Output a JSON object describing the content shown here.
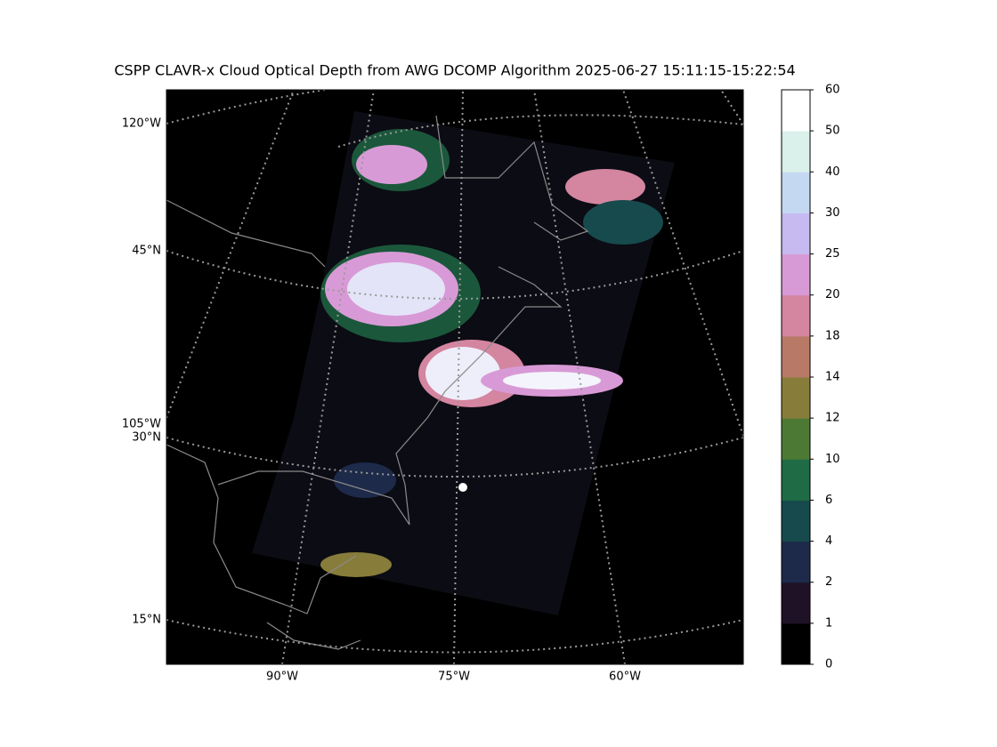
{
  "map": {
    "title": "CSPP CLAVR-x Cloud Optical Depth from AWG DCOMP Algorithm 2025-06-27 15:11:15-15:22:54",
    "left_labels": [
      "120°W",
      "45°N",
      "105°W",
      "30°N",
      "15°N"
    ],
    "bottom_labels": [
      "90°W",
      "75°W",
      "60°W"
    ]
  },
  "colorbar": {
    "ticks": [
      0,
      1,
      2,
      4,
      6,
      10,
      12,
      14,
      18,
      20,
      25,
      30,
      40,
      50,
      60
    ],
    "colors": [
      "#000000",
      "#1f1226",
      "#1d2a4a",
      "#174a4c",
      "#1f6b45",
      "#4c7a34",
      "#877c3a",
      "#b87a66",
      "#d485a0",
      "#d89ad6",
      "#c6baf0",
      "#c4d8f2",
      "#daf0ea",
      "#ffffff"
    ]
  }
}
